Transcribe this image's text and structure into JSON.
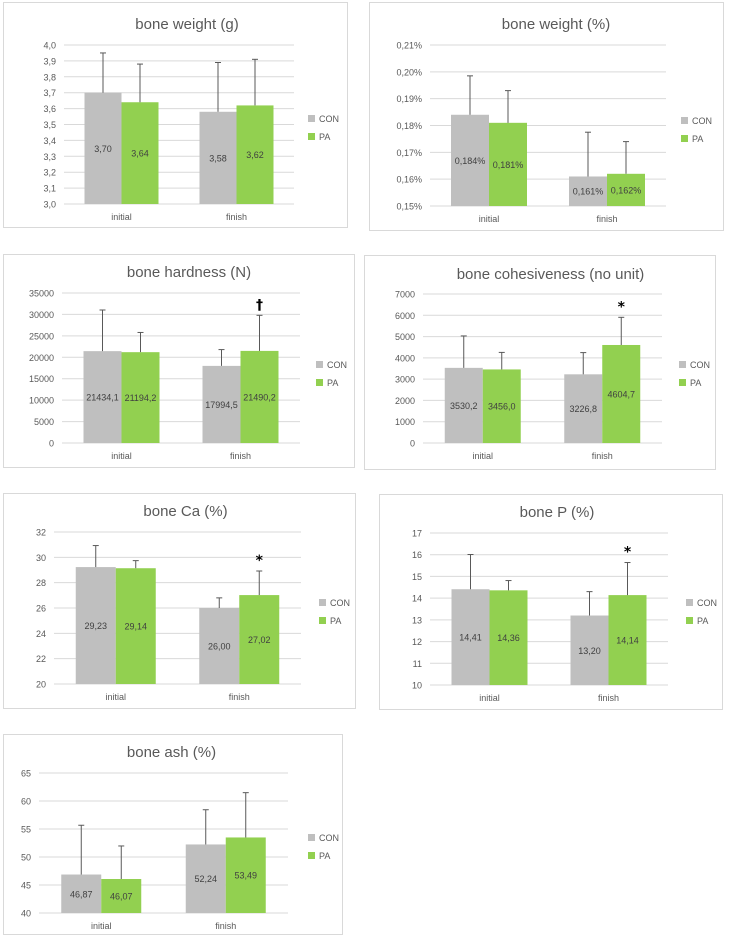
{
  "legend": {
    "con": "CON",
    "pa": "PA"
  },
  "colors": {
    "con": "#bfbfbf",
    "pa": "#92d050",
    "grid": "#d9d9d9",
    "text": "#595959",
    "err": "#595959"
  },
  "chart_data": [
    {
      "id": "bone-weight-g",
      "type": "bar",
      "title": "bone weight (g)",
      "categories": [
        "initial",
        "finish"
      ],
      "series": [
        {
          "name": "CON",
          "values": [
            3.7,
            3.58
          ],
          "labels": [
            "3,70",
            "3,58"
          ],
          "errors": [
            0.25,
            0.31
          ]
        },
        {
          "name": "PA",
          "values": [
            3.64,
            3.62
          ],
          "labels": [
            "3,64",
            "3,62"
          ],
          "errors": [
            0.24,
            0.29
          ]
        }
      ],
      "ylim": [
        3.0,
        4.0
      ],
      "yticks": [
        3.0,
        3.1,
        3.2,
        3.3,
        3.4,
        3.5,
        3.6,
        3.7,
        3.8,
        3.9,
        4.0
      ],
      "yticklabels": [
        "3,0",
        "3,1",
        "3,2",
        "3,3",
        "3,4",
        "3,5",
        "3,6",
        "3,7",
        "3,8",
        "3,9",
        "4,0"
      ],
      "annotations": [
        "",
        ""
      ],
      "grid": true,
      "legend_position": "right"
    },
    {
      "id": "bone-weight-pct",
      "type": "bar",
      "title": "bone weight (%)",
      "categories": [
        "initial",
        "finish"
      ],
      "series": [
        {
          "name": "CON",
          "values": [
            0.184,
            0.161
          ],
          "labels": [
            "0,184%",
            "0,161%"
          ],
          "errors": [
            0.0145,
            0.0165
          ]
        },
        {
          "name": "PA",
          "values": [
            0.181,
            0.162
          ],
          "labels": [
            "0,181%",
            "0,162%"
          ],
          "errors": [
            0.012,
            0.012
          ]
        }
      ],
      "ylim": [
        0.15,
        0.21
      ],
      "yticks": [
        0.15,
        0.16,
        0.17,
        0.18,
        0.19,
        0.2,
        0.21
      ],
      "yticklabels": [
        "0,15%",
        "0,16%",
        "0,17%",
        "0,18%",
        "0,19%",
        "0,20%",
        "0,21%"
      ],
      "annotations": [
        "",
        ""
      ],
      "grid": true,
      "legend_position": "right"
    },
    {
      "id": "bone-hardness",
      "type": "bar",
      "title": "bone hardness (N)",
      "categories": [
        "initial",
        "finish"
      ],
      "series": [
        {
          "name": "CON",
          "values": [
            21434.1,
            17994.5
          ],
          "labels": [
            "21434,1",
            "17994,5"
          ],
          "errors": [
            9600,
            3800
          ]
        },
        {
          "name": "PA",
          "values": [
            21194.2,
            21490.2
          ],
          "labels": [
            "21194,2",
            "21490,2"
          ],
          "errors": [
            4600,
            8300
          ]
        }
      ],
      "ylim": [
        0,
        35000
      ],
      "yticks": [
        0,
        5000,
        10000,
        15000,
        20000,
        25000,
        30000,
        35000
      ],
      "yticklabels": [
        "0",
        "5000",
        "10000",
        "15000",
        "20000",
        "25000",
        "30000",
        "35000"
      ],
      "annotations": [
        "",
        "†"
      ],
      "grid": true,
      "legend_position": "right"
    },
    {
      "id": "bone-cohesiveness",
      "type": "bar",
      "title": "bone cohesiveness (no unit)",
      "categories": [
        "initial",
        "finish"
      ],
      "series": [
        {
          "name": "CON",
          "values": [
            3530.2,
            3226.8
          ],
          "labels": [
            "3530,2",
            "3226,8"
          ],
          "errors": [
            1500,
            1020
          ]
        },
        {
          "name": "PA",
          "values": [
            3456.0,
            4604.7
          ],
          "labels": [
            "3456,0",
            "4604,7"
          ],
          "errors": [
            800,
            1300
          ]
        }
      ],
      "ylim": [
        0,
        7000
      ],
      "yticks": [
        0,
        1000,
        2000,
        3000,
        4000,
        5000,
        6000,
        7000
      ],
      "yticklabels": [
        "0",
        "1000",
        "2000",
        "3000",
        "4000",
        "5000",
        "6000",
        "7000"
      ],
      "annotations": [
        "",
        "*"
      ],
      "grid": true,
      "legend_position": "right"
    },
    {
      "id": "bone-ca",
      "type": "bar",
      "title": "bone Ca (%)",
      "categories": [
        "initial",
        "finish"
      ],
      "series": [
        {
          "name": "CON",
          "values": [
            29.23,
            26.0
          ],
          "labels": [
            "29,23",
            "26,00"
          ],
          "errors": [
            1.7,
            0.8
          ]
        },
        {
          "name": "PA",
          "values": [
            29.14,
            27.02
          ],
          "labels": [
            "29,14",
            "27,02"
          ],
          "errors": [
            0.6,
            1.9
          ]
        }
      ],
      "ylim": [
        20,
        32
      ],
      "yticks": [
        20,
        22,
        24,
        26,
        28,
        30,
        32
      ],
      "yticklabels": [
        "20",
        "22",
        "24",
        "26",
        "28",
        "30",
        "32"
      ],
      "annotations": [
        "",
        "*"
      ],
      "grid": true,
      "legend_position": "right"
    },
    {
      "id": "bone-p",
      "type": "bar",
      "title": "bone P (%)",
      "categories": [
        "initial",
        "finish"
      ],
      "series": [
        {
          "name": "CON",
          "values": [
            14.41,
            13.2
          ],
          "labels": [
            "14,41",
            "13,20"
          ],
          "errors": [
            1.6,
            1.1
          ]
        },
        {
          "name": "PA",
          "values": [
            14.36,
            14.14
          ],
          "labels": [
            "14,36",
            "14,14"
          ],
          "errors": [
            0.45,
            1.5
          ]
        }
      ],
      "ylim": [
        10,
        17
      ],
      "yticks": [
        10,
        11,
        12,
        13,
        14,
        15,
        16,
        17
      ],
      "yticklabels": [
        "10",
        "11",
        "12",
        "13",
        "14",
        "15",
        "16",
        "17"
      ],
      "annotations": [
        "",
        "*"
      ],
      "grid": true,
      "legend_position": "right"
    },
    {
      "id": "bone-ash",
      "type": "bar",
      "title": "bone ash (%)",
      "categories": [
        "initial",
        "finish"
      ],
      "series": [
        {
          "name": "CON",
          "values": [
            46.87,
            52.24
          ],
          "labels": [
            "46,87",
            "52,24"
          ],
          "errors": [
            8.8,
            6.2
          ]
        },
        {
          "name": "PA",
          "values": [
            46.07,
            53.49
          ],
          "labels": [
            "46,07",
            "53,49"
          ],
          "errors": [
            5.9,
            8.0
          ]
        }
      ],
      "ylim": [
        40,
        65
      ],
      "yticks": [
        40,
        45,
        50,
        55,
        60,
        65
      ],
      "yticklabels": [
        "40",
        "45",
        "50",
        "55",
        "60",
        "65"
      ],
      "annotations": [
        "",
        ""
      ],
      "grid": true,
      "legend_position": "right"
    }
  ]
}
